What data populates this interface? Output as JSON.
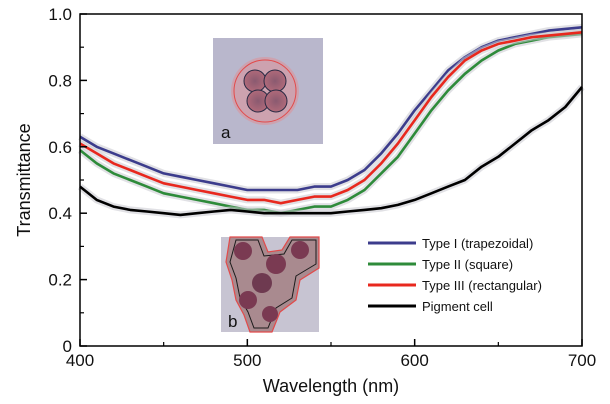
{
  "chart_data": {
    "type": "line",
    "xlabel": "Wavelength (nm)",
    "ylabel": "Transmittance",
    "xlim": [
      400,
      700
    ],
    "ylim": [
      0,
      1.0
    ],
    "x_ticks": [
      "400",
      "500",
      "600",
      "700"
    ],
    "y_ticks": [
      "0",
      "0.2",
      "0.4",
      "0.6",
      "0.8",
      "1.0"
    ],
    "grid": false,
    "legend_position": "bottom-right",
    "x": [
      400,
      410,
      420,
      430,
      440,
      450,
      460,
      470,
      480,
      490,
      500,
      510,
      520,
      530,
      540,
      550,
      560,
      570,
      580,
      590,
      600,
      610,
      620,
      630,
      640,
      650,
      660,
      670,
      680,
      690,
      700
    ],
    "series": [
      {
        "name": "Type I (trapezoidal)",
        "color": "#3c3c8c",
        "values": [
          0.63,
          0.6,
          0.58,
          0.56,
          0.54,
          0.52,
          0.51,
          0.5,
          0.49,
          0.48,
          0.47,
          0.47,
          0.47,
          0.47,
          0.48,
          0.48,
          0.5,
          0.53,
          0.58,
          0.64,
          0.71,
          0.77,
          0.83,
          0.87,
          0.9,
          0.92,
          0.93,
          0.94,
          0.95,
          0.955,
          0.96
        ]
      },
      {
        "name": "Type II (square)",
        "color": "#2e8b3a",
        "values": [
          0.59,
          0.55,
          0.52,
          0.5,
          0.48,
          0.46,
          0.45,
          0.44,
          0.43,
          0.42,
          0.41,
          0.41,
          0.4,
          0.41,
          0.42,
          0.42,
          0.44,
          0.47,
          0.52,
          0.57,
          0.64,
          0.71,
          0.77,
          0.82,
          0.86,
          0.89,
          0.91,
          0.92,
          0.93,
          0.935,
          0.94
        ]
      },
      {
        "name": "Type III (rectangular)",
        "color": "#e8281e",
        "values": [
          0.61,
          0.58,
          0.55,
          0.53,
          0.51,
          0.49,
          0.48,
          0.47,
          0.46,
          0.45,
          0.44,
          0.44,
          0.43,
          0.44,
          0.45,
          0.45,
          0.47,
          0.5,
          0.55,
          0.61,
          0.68,
          0.75,
          0.81,
          0.86,
          0.89,
          0.91,
          0.92,
          0.93,
          0.935,
          0.94,
          0.945
        ]
      },
      {
        "name": "Pigment cell",
        "color": "#000000",
        "values": [
          0.48,
          0.44,
          0.42,
          0.41,
          0.405,
          0.4,
          0.395,
          0.4,
          0.405,
          0.41,
          0.405,
          0.4,
          0.4,
          0.4,
          0.4,
          0.4,
          0.405,
          0.41,
          0.415,
          0.425,
          0.44,
          0.46,
          0.48,
          0.5,
          0.54,
          0.57,
          0.61,
          0.65,
          0.68,
          0.72,
          0.78
        ]
      }
    ],
    "annotations": [
      "a",
      "b"
    ]
  }
}
